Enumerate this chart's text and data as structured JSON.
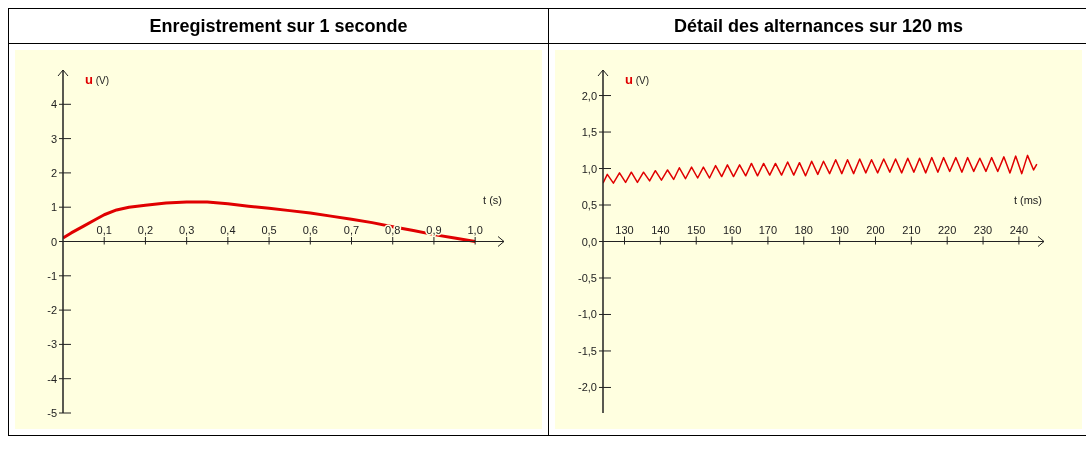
{
  "chart_data": [
    {
      "type": "line",
      "title": "Enregistrement sur 1 seconde",
      "xlabel": "t (s)",
      "ylabel": "u (V)",
      "x": [
        0,
        0.02,
        0.05,
        0.08,
        0.1,
        0.13,
        0.16,
        0.2,
        0.25,
        0.3,
        0.35,
        0.4,
        0.45,
        0.5,
        0.55,
        0.6,
        0.65,
        0.7,
        0.75,
        0.8,
        0.85,
        0.9,
        0.95,
        1.0
      ],
      "series": [
        {
          "color": "#e00000",
          "values": [
            0.1,
            0.25,
            0.45,
            0.65,
            0.78,
            0.92,
            1.0,
            1.06,
            1.12,
            1.15,
            1.15,
            1.1,
            1.03,
            0.97,
            0.9,
            0.83,
            0.74,
            0.65,
            0.55,
            0.43,
            0.32,
            0.2,
            0.1,
            0.0
          ]
        }
      ],
      "xlim": [
        0,
        1.07
      ],
      "ylim": [
        -5,
        5
      ],
      "xticks": [
        {
          "value": 0.1,
          "label": "0,1"
        },
        {
          "value": 0.2,
          "label": "0,2"
        },
        {
          "value": 0.3,
          "label": "0,3"
        },
        {
          "value": 0.4,
          "label": "0,4"
        },
        {
          "value": 0.5,
          "label": "0,5"
        },
        {
          "value": 0.6,
          "label": "0,6"
        },
        {
          "value": 0.7,
          "label": "0,7"
        },
        {
          "value": 0.8,
          "label": "0,8"
        },
        {
          "value": 0.9,
          "label": "0,9"
        },
        {
          "value": 1.0,
          "label": "1,0"
        }
      ],
      "yticks": [
        -5,
        -4,
        -3,
        -2,
        -1,
        0,
        1,
        2,
        3,
        4
      ]
    },
    {
      "type": "line",
      "title": "Détail des alternances  sur 120 ms",
      "xlabel": "t (ms)",
      "ylabel": "u (V)",
      "x": [
        124.0,
        125.2,
        126.9,
        128.6,
        130.3,
        131.9,
        133.6,
        135.3,
        137.0,
        138.6,
        140.3,
        142.0,
        143.7,
        145.3,
        147.0,
        148.7,
        150.4,
        152.0,
        153.7,
        155.4,
        157.1,
        158.7,
        160.4,
        162.1,
        163.8,
        165.4,
        167.1,
        168.8,
        170.5,
        172.1,
        173.8,
        175.5,
        177.2,
        178.8,
        180.5,
        182.2,
        183.9,
        185.5,
        187.2,
        188.9,
        190.6,
        192.2,
        193.9,
        195.6,
        197.3,
        198.9,
        200.6,
        202.3,
        204.0,
        205.6,
        207.3,
        209.0,
        210.7,
        212.3,
        214.0,
        215.7,
        217.4,
        219.0,
        220.7,
        222.4,
        224.1,
        225.7,
        227.4,
        229.1,
        230.8,
        232.4,
        234.1,
        235.8,
        237.5,
        239.1,
        240.8,
        242.4,
        244.1,
        245.0
      ],
      "series": [
        {
          "color": "#e00000",
          "values": [
            0.8,
            0.92,
            0.8,
            0.94,
            0.81,
            0.95,
            0.81,
            0.95,
            0.83,
            0.97,
            0.84,
            0.98,
            0.85,
            1.01,
            0.86,
            1.02,
            0.87,
            1.02,
            0.87,
            1.04,
            0.89,
            1.05,
            0.89,
            1.05,
            0.9,
            1.07,
            0.9,
            1.07,
            0.91,
            1.07,
            0.91,
            1.09,
            0.91,
            1.08,
            0.9,
            1.1,
            0.92,
            1.1,
            0.93,
            1.12,
            0.93,
            1.12,
            0.93,
            1.13,
            0.94,
            1.12,
            0.94,
            1.13,
            0.95,
            1.13,
            0.94,
            1.14,
            0.95,
            1.14,
            0.94,
            1.15,
            0.95,
            1.15,
            0.96,
            1.15,
            0.95,
            1.15,
            0.96,
            1.14,
            0.96,
            1.15,
            0.96,
            1.16,
            0.94,
            1.17,
            0.93,
            1.18,
            0.98,
            1.06
          ]
        }
      ],
      "xlim": [
        124,
        247
      ],
      "ylim": [
        -2.35,
        2.35
      ],
      "xticks": [
        130,
        140,
        150,
        160,
        170,
        180,
        190,
        200,
        210,
        220,
        230,
        240
      ],
      "yticks": [
        {
          "value": -2,
          "label": "-2,0"
        },
        {
          "value": -1.5,
          "label": "-1,5"
        },
        {
          "value": -1,
          "label": "-1,0"
        },
        {
          "value": -0.5,
          "label": "-0,5"
        },
        {
          "value": 0,
          "label": "0,0"
        },
        {
          "value": 0.5,
          "label": "0,5"
        },
        {
          "value": 1,
          "label": "1,0"
        },
        {
          "value": 1.5,
          "label": "1,5"
        },
        {
          "value": 2,
          "label": "2,0"
        }
      ]
    }
  ]
}
